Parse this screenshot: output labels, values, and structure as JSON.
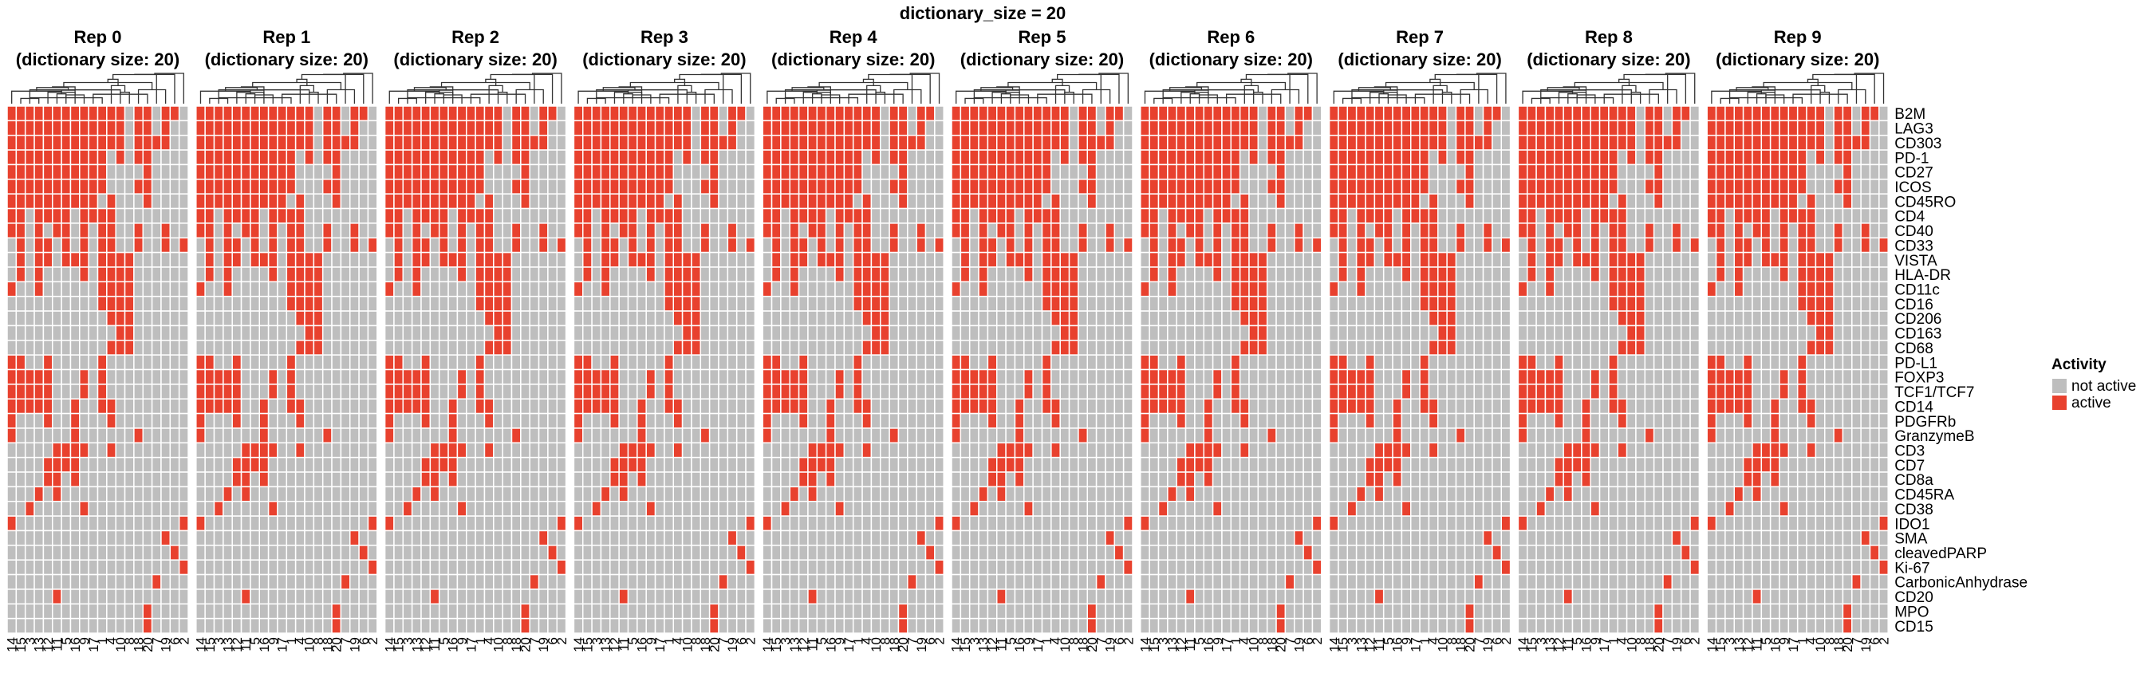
{
  "chart_data": {
    "type": "heatmap",
    "title": "dictionary_size = 20",
    "panels": [
      {
        "title": "Rep 0",
        "subtitle": "(dictionary size: 20)"
      },
      {
        "title": "Rep 1",
        "subtitle": "(dictionary size: 20)"
      },
      {
        "title": "Rep 2",
        "subtitle": "(dictionary size: 20)"
      },
      {
        "title": "Rep 3",
        "subtitle": "(dictionary size: 20)"
      },
      {
        "title": "Rep 4",
        "subtitle": "(dictionary size: 20)"
      },
      {
        "title": "Rep 5",
        "subtitle": "(dictionary size: 20)"
      },
      {
        "title": "Rep 6",
        "subtitle": "(dictionary size: 20)"
      },
      {
        "title": "Rep 7",
        "subtitle": "(dictionary size: 20)"
      },
      {
        "title": "Rep 8",
        "subtitle": "(dictionary size: 20)"
      },
      {
        "title": "Rep 9",
        "subtitle": "(dictionary size: 20)"
      }
    ],
    "rows": [
      "B2M",
      "LAG3",
      "CD303",
      "PD-1",
      "CD27",
      "ICOS",
      "CD45RO",
      "CD4",
      "CD40",
      "CD33",
      "VISTA",
      "HLA-DR",
      "CD11c",
      "CD16",
      "CD206",
      "CD163",
      "CD68",
      "PD-L1",
      "FOXP3",
      "TCF1/TCF7",
      "CD14",
      "PDGFRb",
      "GranzymeB",
      "CD3",
      "CD7",
      "CD8a",
      "CD45RA",
      "CD38",
      "IDO1",
      "SMA",
      "cleavedPARP",
      "Ki-67",
      "CarbonicAnhydrase",
      "CD20",
      "MPO",
      "CD15"
    ],
    "columns": [
      "14",
      "15",
      "3",
      "13",
      "12",
      "11",
      "5",
      "16",
      "9",
      "17",
      "1",
      "4",
      "10",
      "8",
      "18",
      "20",
      "7",
      "19",
      "6",
      "2"
    ],
    "matrix": [
      "11111111111110110110",
      "11111111111110110100",
      "11111111111110111100",
      "11111111111010110000",
      "11111111111000010000",
      "11111111111000110000",
      "11111111110100010000",
      "11011110111100000000",
      "11010110101100100100",
      "01011010101100100101",
      "01011011101111000000",
      "01010000101111000000",
      "10010000001111000000",
      "00000000001111000000",
      "00000000000111000000",
      "00000000000011000000",
      "00000000000111000000",
      "11001000001000000000",
      "11111000101000000000",
      "11111000101000000000",
      "11111001001100000000",
      "10001001000100000000",
      "10000001000000100000",
      "00000111100100000000",
      "00001111000000000000",
      "00001101000000000000",
      "00010100000000000000",
      "00100000100000000000",
      "10000000000000000001",
      "00000000000000000100",
      "00000000000000000010",
      "00000000000000000001",
      "00000000000000001000",
      "00000100000000000000",
      "00000000000000010000",
      "00000000000000010000"
    ],
    "legend": {
      "title": "Activity",
      "placement": "right",
      "items": [
        {
          "label": "not active",
          "value": 0,
          "color": "#bebebe"
        },
        {
          "label": "active",
          "value": 1,
          "color": "#e8412e"
        }
      ]
    }
  }
}
